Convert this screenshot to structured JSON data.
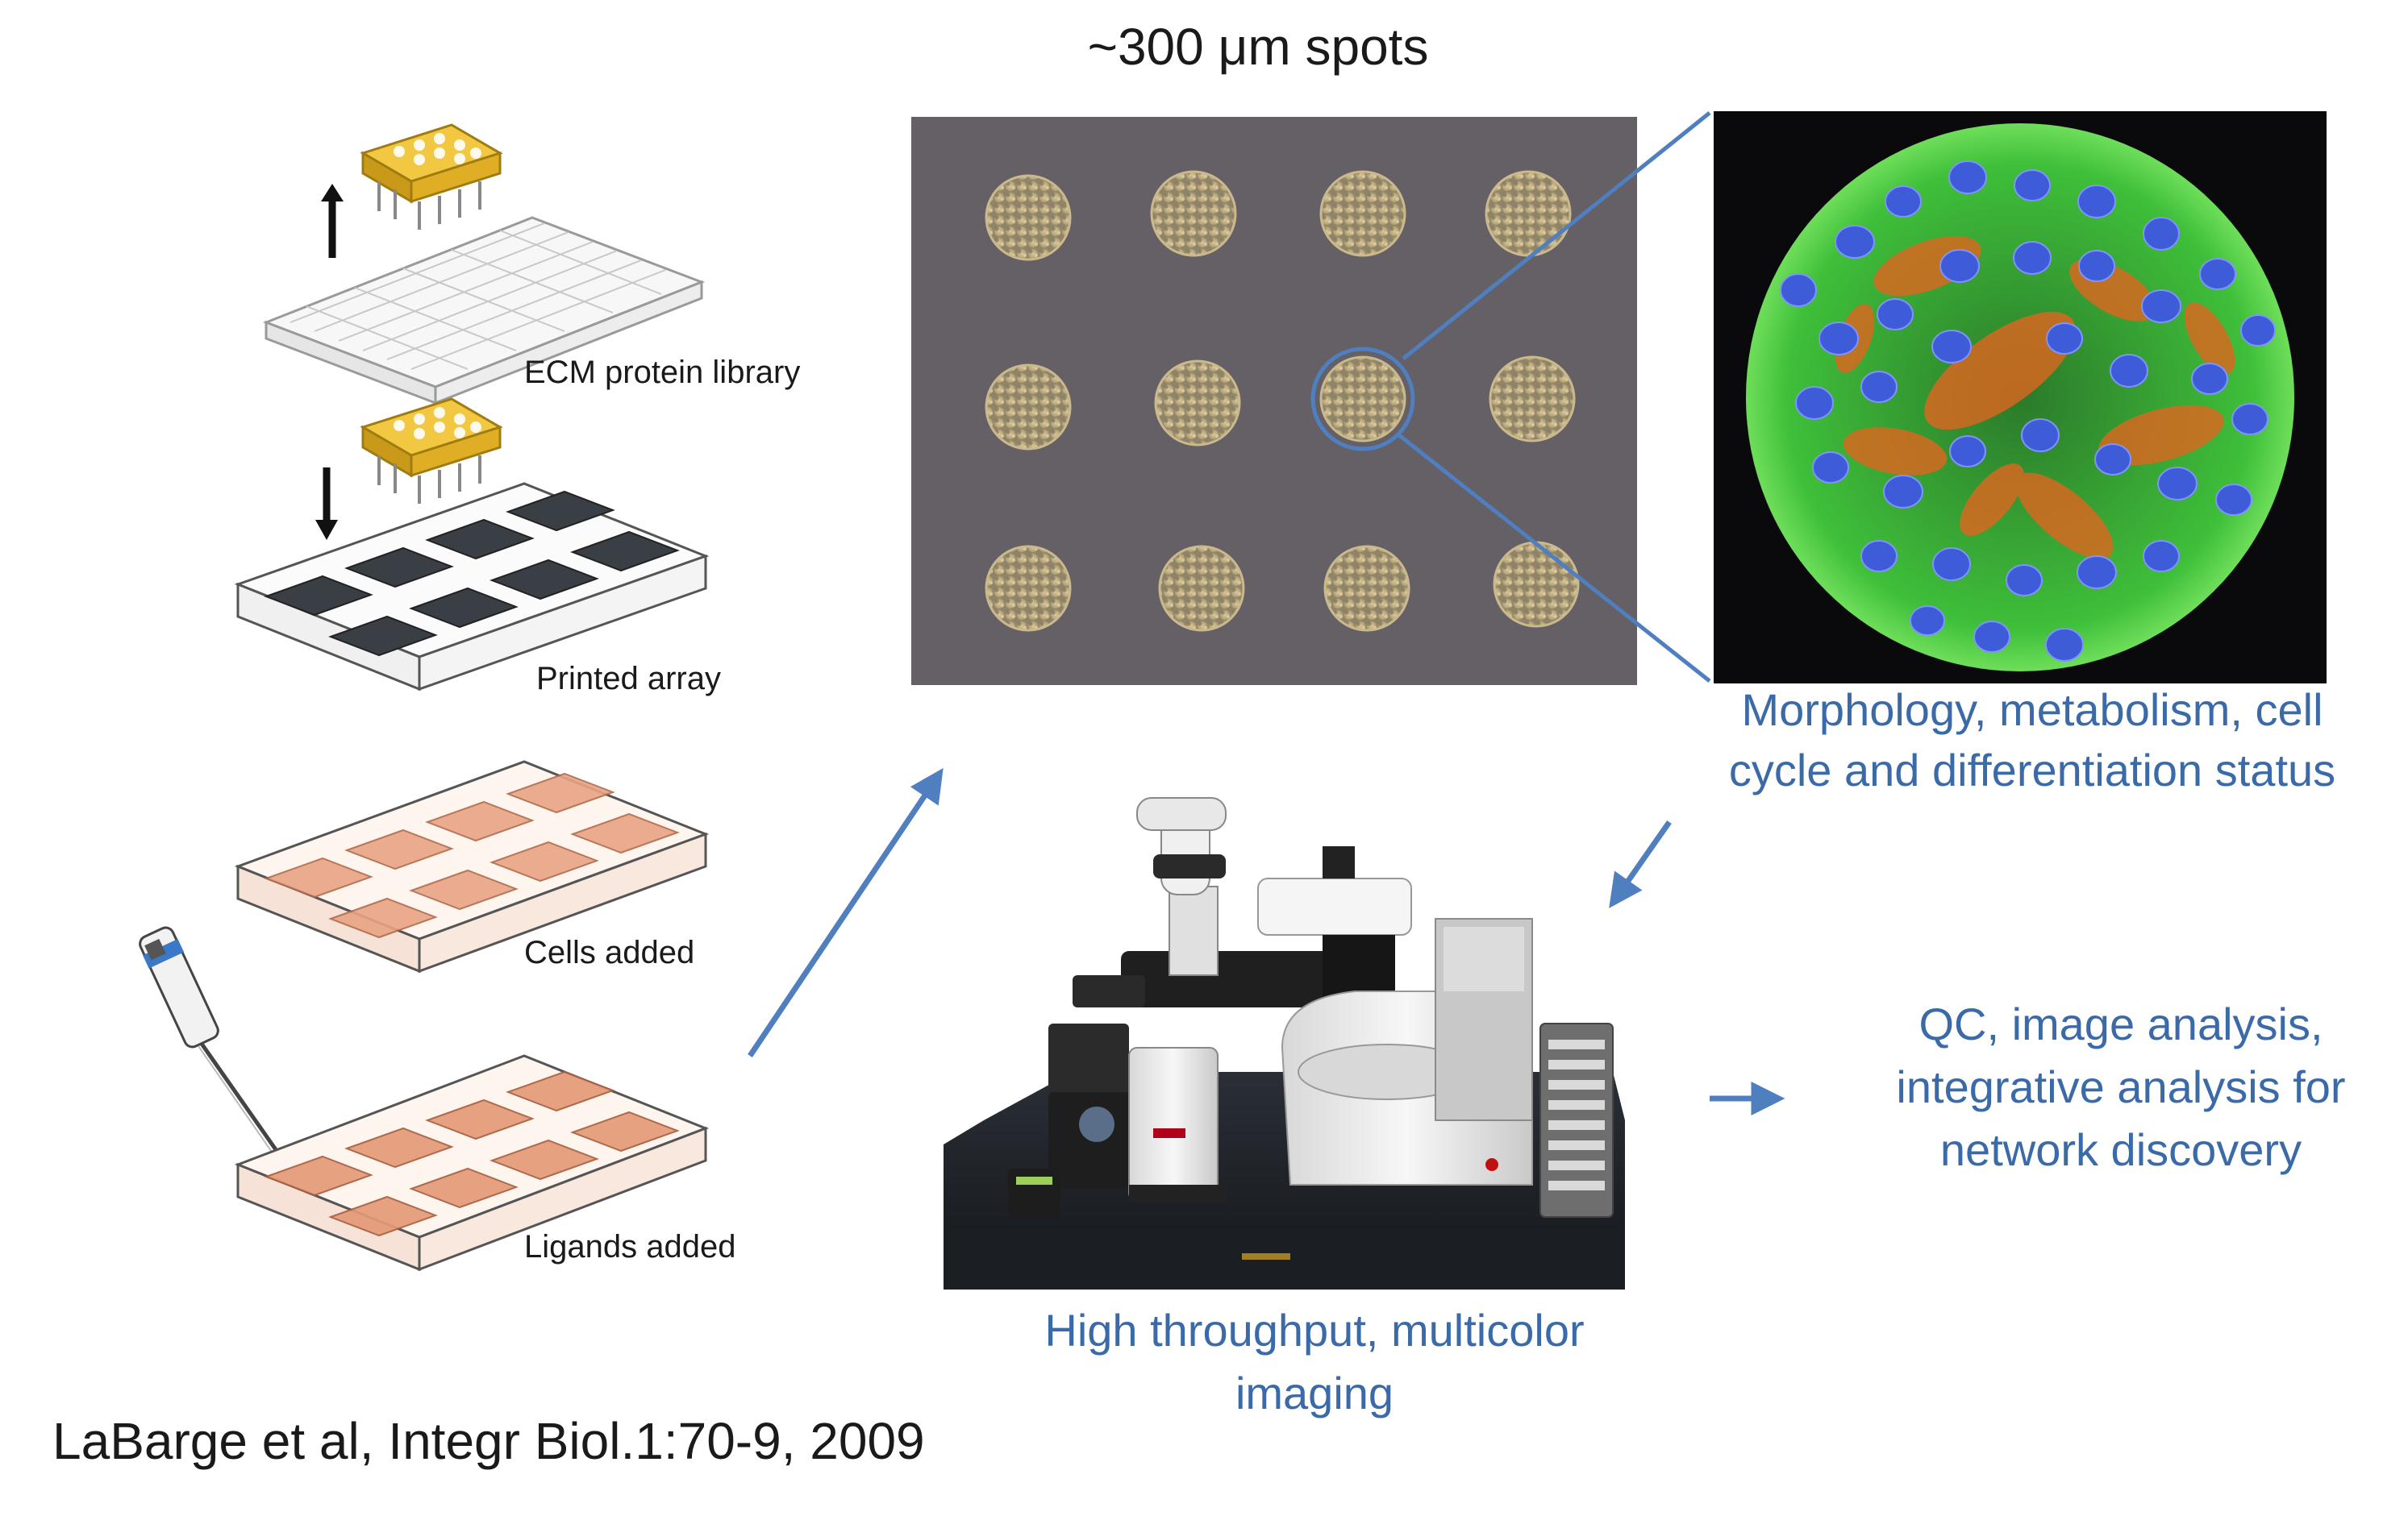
{
  "heading": "~300 μm spots",
  "steps": [
    {
      "label": "ECM protein library"
    },
    {
      "label": "Printed array"
    },
    {
      "label": "Cells added"
    },
    {
      "label": "Ligands added"
    }
  ],
  "morphology": {
    "line1": "Morphology, metabolism, cell",
    "line2": "cycle and differentiation status"
  },
  "imaging": {
    "line1": "High throughput, multicolor",
    "line2": "imaging"
  },
  "analysis": {
    "line1": "QC, image analysis,",
    "line2": "integrative analysis for",
    "line3": "network discovery"
  },
  "citation": "LaBarge et al, Integr Biol.1:70-9, 2009",
  "colors": {
    "accent_blue": "#3b6aa8",
    "array_red": "#e8a484",
    "array_dark": "#3a3f46",
    "pin_gold": "#e6b422",
    "microscopy_bg": "#5e5a66",
    "nucleus": "#3e5bd8",
    "actin_green": "#3fbf3a",
    "cytoplasm_orange": "#e0661f"
  }
}
